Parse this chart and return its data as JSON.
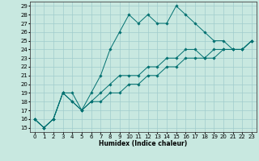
{
  "title": "",
  "xlabel": "Humidex (Indice chaleur)",
  "xlim_min": -0.5,
  "xlim_max": 23.5,
  "ylim_min": 14.5,
  "ylim_max": 29.5,
  "background_color": "#c8e8e0",
  "line_color": "#007070",
  "grid_color": "#a0cccc",
  "series": [
    [
      16,
      15,
      16,
      19,
      19,
      17,
      19,
      21,
      24,
      26,
      28,
      27,
      28,
      27,
      27,
      29,
      28,
      27,
      26,
      25,
      25,
      24,
      24,
      25
    ],
    [
      16,
      15,
      16,
      19,
      18,
      17,
      18,
      19,
      20,
      21,
      21,
      21,
      22,
      22,
      23,
      23,
      24,
      24,
      23,
      24,
      24,
      24,
      24,
      25
    ],
    [
      16,
      15,
      16,
      19,
      18,
      17,
      18,
      18,
      19,
      19,
      20,
      20,
      21,
      21,
      22,
      22,
      23,
      23,
      23,
      23,
      24,
      24,
      24,
      25
    ]
  ],
  "xticks": [
    0,
    1,
    2,
    3,
    4,
    5,
    6,
    7,
    8,
    9,
    10,
    11,
    12,
    13,
    14,
    15,
    16,
    17,
    18,
    19,
    20,
    21,
    22,
    23
  ],
  "yticks": [
    15,
    16,
    17,
    18,
    19,
    20,
    21,
    22,
    23,
    24,
    25,
    26,
    27,
    28,
    29
  ],
  "tick_fontsize": 5.0,
  "xlabel_fontsize": 5.5
}
